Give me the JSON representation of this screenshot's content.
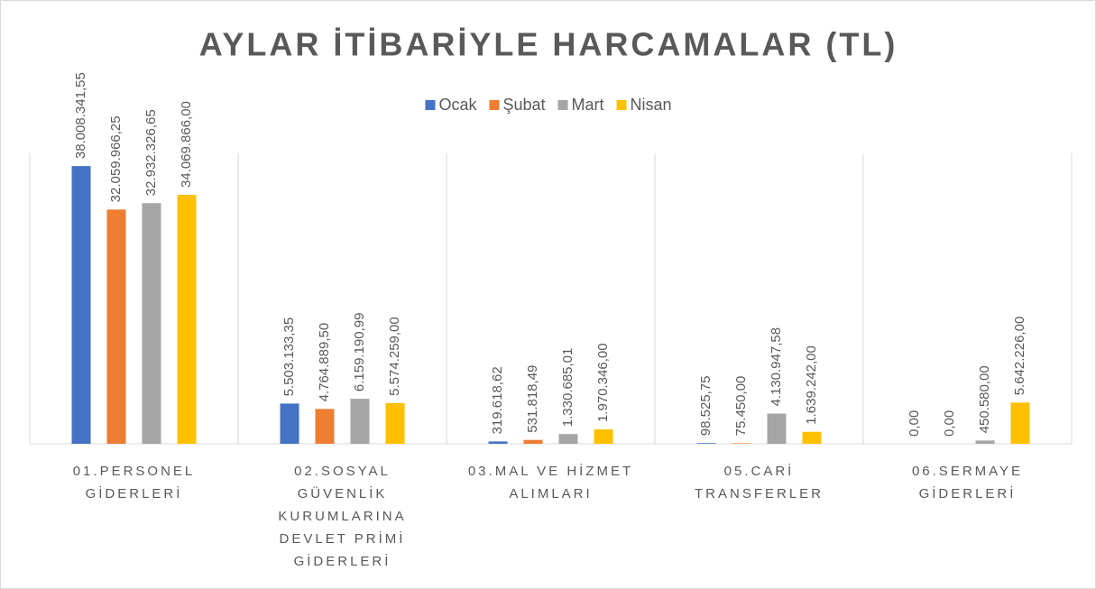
{
  "chart_data": {
    "type": "bar",
    "title": "AYLAR İTİBARİYLE HARCAMALAR (TL)",
    "categories": [
      "01.PERSONEL GİDERLERİ",
      "02.SOSYAL GÜVENLİK KURUMLARINA DEVLET PRİMİ GİDERLERİ",
      "03.MAL VE HİZMET ALIMLARI",
      "05.CARİ TRANSFERLER",
      "06.SERMAYE GİDERLERİ"
    ],
    "series": [
      {
        "name": "Ocak",
        "color": "#4472c4",
        "values": [
          38008341.55,
          5503133.35,
          319618.62,
          98525.75,
          0
        ],
        "value_labels": [
          "38.008.341,55",
          "5.503.133,35",
          "319.618,62",
          "98.525,75",
          "0,00"
        ]
      },
      {
        "name": "Şubat",
        "color": "#ed7d31",
        "values": [
          32059966.25,
          4764889.5,
          531818.49,
          75450.0,
          0
        ],
        "value_labels": [
          "32.059.966,25",
          "4.764.889,50",
          "531.818,49",
          "75.450,00",
          "0,00"
        ]
      },
      {
        "name": "Mart",
        "color": "#a5a5a5",
        "values": [
          32932326.65,
          6159190.99,
          1330685.01,
          4130947.58,
          450580.0
        ],
        "value_labels": [
          "32.932.326,65",
          "6.159.190,99",
          "1.330.685,01",
          "4.130.947,58",
          "450.580,00"
        ]
      },
      {
        "name": "Nisan",
        "color": "#ffc000",
        "values": [
          34069866.0,
          5574259.0,
          1970346.0,
          1639242.0,
          5642226.0
        ],
        "value_labels": [
          "34.069.866,00",
          "5.574.259,00",
          "1.970.346,00",
          "1.639.242,00",
          "5.642.226,00"
        ]
      }
    ],
    "ylim": [
      0,
      40000000
    ],
    "legend": "top"
  }
}
